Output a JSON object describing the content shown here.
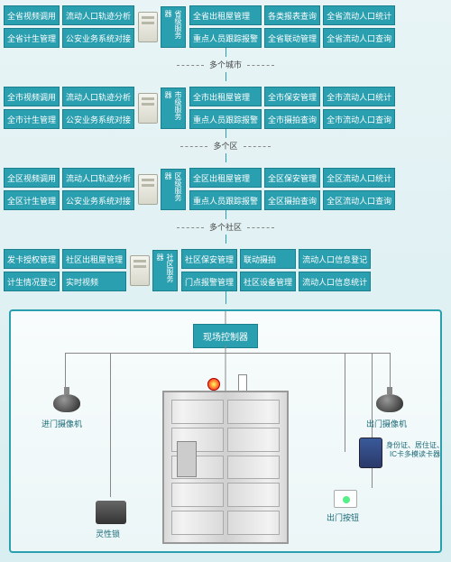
{
  "colors": {
    "teal": "#2a9faf",
    "tealBorder": "#1c7f8d",
    "bg1": "#e8f4f6",
    "bg2": "#d8eef0"
  },
  "tiers": [
    {
      "left": [
        "全省视频调用",
        "流动人口轨迹分析",
        "全省计生管理",
        "公安业务系统对接"
      ],
      "vlabel": "省级服务器",
      "right": [
        "全省出租屋管理",
        "各类报表查询",
        "全省流动人口统计",
        "重点人员跟踪报警",
        "全省联动管理",
        "全省流动人口查询"
      ],
      "sep": "多个城市"
    },
    {
      "left": [
        "全市视频调用",
        "流动人口轨迹分析",
        "全市计生管理",
        "公安业务系统对接"
      ],
      "vlabel": "市级服务器",
      "right": [
        "全市出租屋管理",
        "全市保安管理",
        "全市流动人口统计",
        "重点人员跟踪报警",
        "全市摄拍查询",
        "全市流动人口查询"
      ],
      "sep": "多个区"
    },
    {
      "left": [
        "全区视频调用",
        "流动人口轨迹分析",
        "全区计生管理",
        "公安业务系统对接"
      ],
      "vlabel": "区级服务器",
      "right": [
        "全区出租屋管理",
        "全区保安管理",
        "全区流动人口统计",
        "重点人员跟踪报警",
        "全区摄拍查询",
        "全区流动人口查询"
      ],
      "sep": "多个社区"
    },
    {
      "left": [
        "发卡授权管理",
        "社区出租屋管理",
        "计生情况登记",
        "实时视频"
      ],
      "vlabel": "社区服务器",
      "right": [
        "社区保安管理",
        "联动摄拍",
        "流动人口信息登记",
        "门点报警管理",
        "社区设备管理",
        "流动人口信息统计"
      ],
      "sep": null
    }
  ],
  "scene": {
    "controller": "现场控制器",
    "devices": {
      "cam_in": "进门摄像机",
      "cam_out": "出门摄像机",
      "lock": "灵性锁",
      "alarm": "警灯",
      "magnet": "门磁",
      "reader": "身份证、居住证、\nIC卡多模读卡器",
      "exit_button": "出门按钮"
    }
  }
}
